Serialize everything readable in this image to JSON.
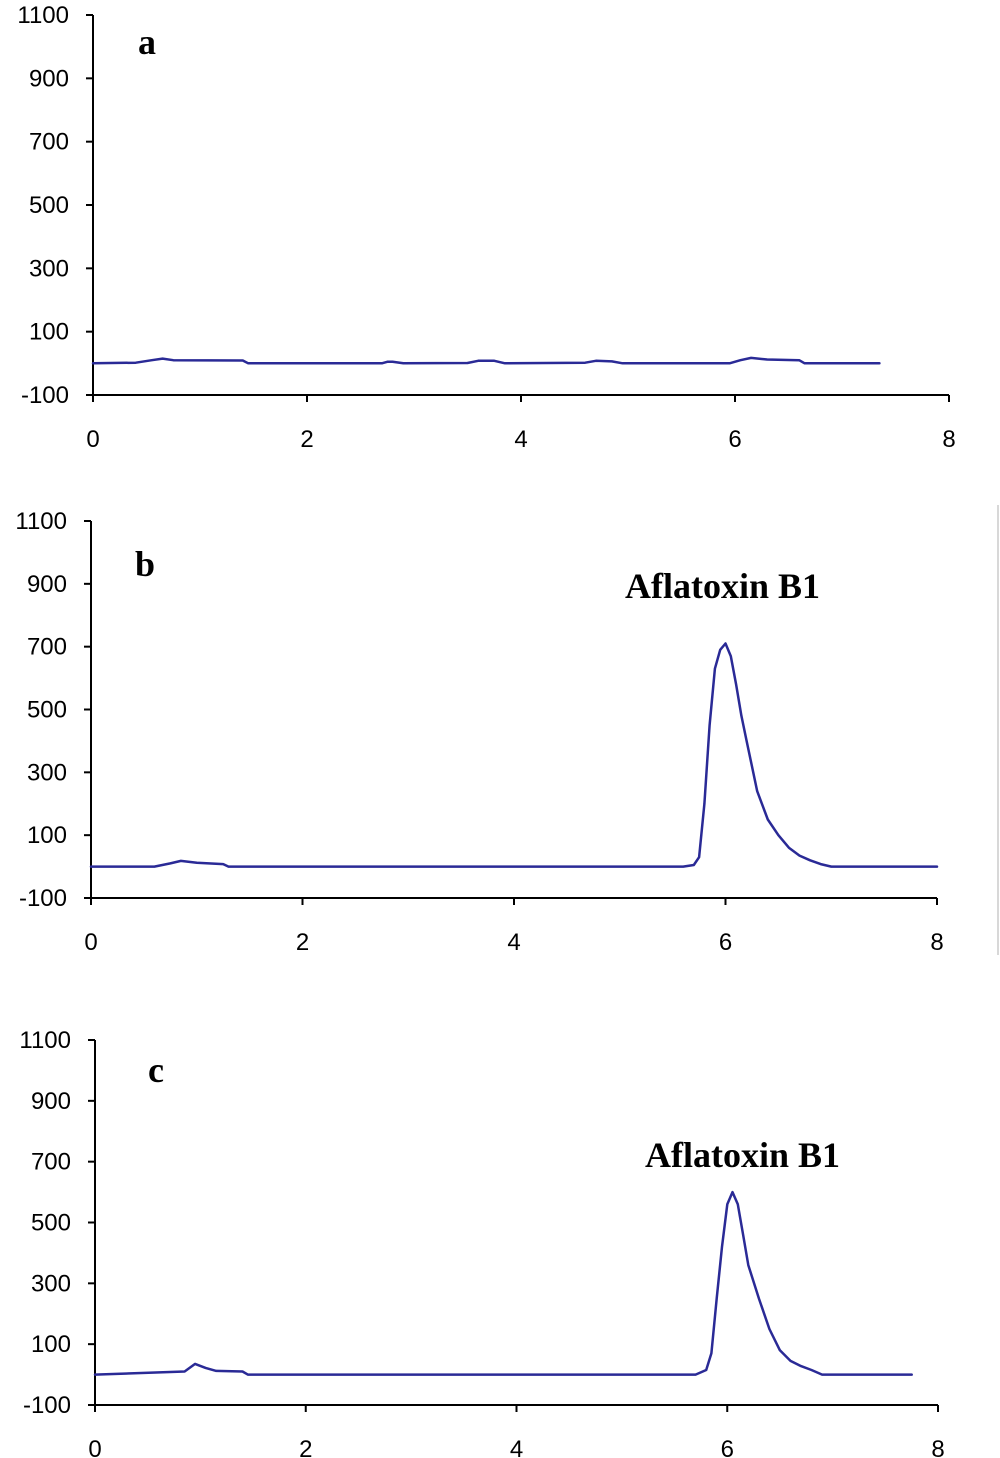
{
  "colors": {
    "trace": "#2a2a96",
    "axis": "#000000"
  },
  "chart_data": [
    {
      "type": "line",
      "panel_label": "a",
      "annotation": "",
      "xlim": [
        0,
        8
      ],
      "ylim": [
        -100,
        1100
      ],
      "x_ticks": [
        "0",
        "2",
        "4",
        "6",
        "8"
      ],
      "y_ticks": [
        "1100",
        "900",
        "700",
        "500",
        "300",
        "100",
        "-100"
      ],
      "series": [
        {
          "x": [
            0,
            0.4,
            0.55,
            0.65,
            0.75,
            1.4,
            1.45,
            2.7,
            2.75,
            2.8,
            2.9,
            3.5,
            3.6,
            3.75,
            3.85,
            4.6,
            4.7,
            4.85,
            4.95,
            5.95,
            6.05,
            6.15,
            6.3,
            6.6,
            6.65,
            7.35
          ],
          "y": [
            0,
            2,
            10,
            15,
            10,
            9,
            0,
            0,
            5,
            5,
            0,
            1,
            8,
            8,
            0,
            2,
            8,
            6,
            0,
            0,
            10,
            17,
            12,
            10,
            0,
            0
          ]
        }
      ]
    },
    {
      "type": "line",
      "panel_label": "b",
      "annotation": "Aflatoxin B1",
      "xlim": [
        0,
        8
      ],
      "ylim": [
        -100,
        1100
      ],
      "x_ticks": [
        "0",
        "2",
        "4",
        "6",
        "8"
      ],
      "y_ticks": [
        "1100",
        "900",
        "700",
        "500",
        "300",
        "100",
        "-100"
      ],
      "series": [
        {
          "x": [
            0,
            0.6,
            0.75,
            0.85,
            1.0,
            1.25,
            1.3,
            5.6,
            5.7,
            5.75,
            5.8,
            5.85,
            5.9,
            5.95,
            6.0,
            6.05,
            6.1,
            6.15,
            6.2,
            6.25,
            6.3,
            6.4,
            6.5,
            6.6,
            6.7,
            6.8,
            6.9,
            7.0,
            8.0
          ],
          "y": [
            0,
            0,
            10,
            18,
            12,
            8,
            0,
            0,
            5,
            30,
            200,
            450,
            630,
            690,
            710,
            670,
            580,
            480,
            400,
            320,
            240,
            150,
            100,
            60,
            35,
            20,
            8,
            0,
            0
          ]
        }
      ]
    },
    {
      "type": "line",
      "panel_label": "c",
      "annotation": "Aflatoxin B1",
      "xlim": [
        0,
        8
      ],
      "ylim": [
        -100,
        1100
      ],
      "x_ticks": [
        "0",
        "2",
        "4",
        "6",
        "8"
      ],
      "y_ticks": [
        "1100",
        "900",
        "700",
        "500",
        "300",
        "100",
        "-100"
      ],
      "series": [
        {
          "x": [
            0,
            0.85,
            0.95,
            1.05,
            1.15,
            1.4,
            1.45,
            5.7,
            5.8,
            5.85,
            5.9,
            5.95,
            6.0,
            6.05,
            6.1,
            6.15,
            6.2,
            6.3,
            6.4,
            6.5,
            6.6,
            6.7,
            6.8,
            6.9,
            7.75
          ],
          "y": [
            0,
            10,
            35,
            22,
            12,
            10,
            0,
            0,
            15,
            70,
            250,
            420,
            560,
            600,
            560,
            460,
            360,
            250,
            150,
            80,
            45,
            28,
            15,
            0,
            0
          ]
        }
      ]
    }
  ]
}
